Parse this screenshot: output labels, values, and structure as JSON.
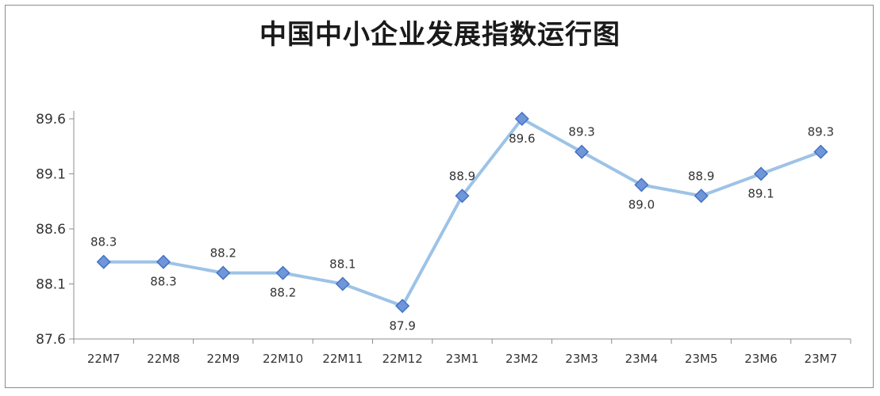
{
  "chart_data": {
    "type": "line",
    "title": "中国中小企业发展指数运行图",
    "xlabel": "",
    "ylabel": "",
    "categories": [
      "22M7",
      "22M8",
      "22M9",
      "22M10",
      "22M11",
      "22M12",
      "23M1",
      "23M2",
      "23M3",
      "23M4",
      "23M5",
      "23M6",
      "23M7"
    ],
    "series": [
      {
        "values": [
          88.3,
          88.3,
          88.2,
          88.2,
          88.1,
          87.9,
          88.9,
          89.6,
          89.3,
          89.0,
          88.9,
          89.1,
          89.3
        ],
        "data_labels": [
          "88.3",
          "88.3",
          "88.2",
          "88.2",
          "88.1",
          "87.9",
          "88.9",
          "89.6",
          "89.3",
          "89.0",
          "88.9",
          "89.1",
          "89.3"
        ],
        "label_positions": [
          "above",
          "below",
          "above",
          "below",
          "above",
          "below",
          "above",
          "below",
          "above",
          "below",
          "above",
          "below",
          "above"
        ],
        "color": "#9dc3e6",
        "marker_fill": "#6f96d8",
        "marker_edge": "#4472c4",
        "marker": "diamond"
      }
    ],
    "yticks": [
      "87.6",
      "88.1",
      "88.6",
      "89.1",
      "89.6"
    ],
    "ylim": [
      87.6,
      89.7
    ],
    "grid": false,
    "legend": "none"
  }
}
